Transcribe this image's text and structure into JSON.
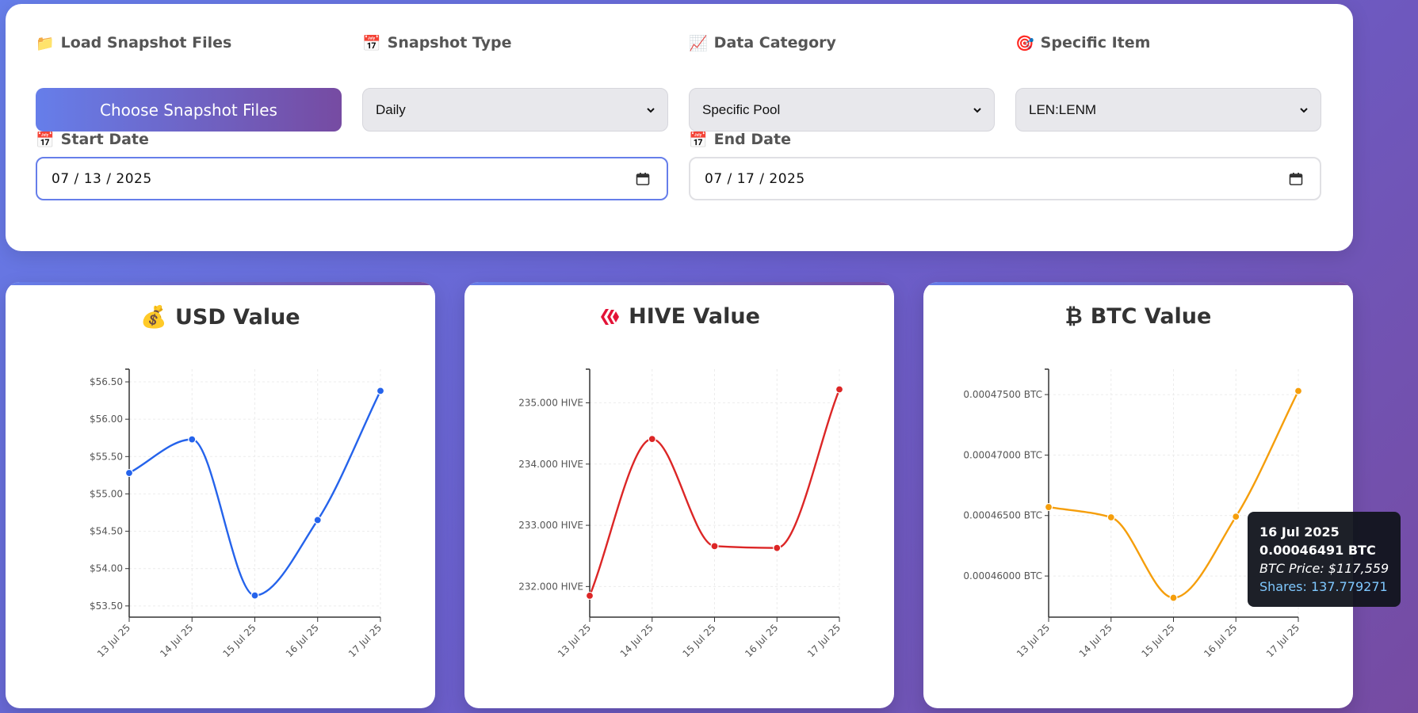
{
  "controls": {
    "load_files": {
      "icon": "📁",
      "label": "Load Snapshot Files",
      "button": "Choose Snapshot Files"
    },
    "snapshot_type": {
      "icon": "📅",
      "label": "Snapshot Type",
      "value": "Daily"
    },
    "data_category": {
      "icon": "📈",
      "label": "Data Category",
      "value": "Specific Pool"
    },
    "specific_item": {
      "icon": "🎯",
      "label": "Specific Item",
      "value": "LEN:LENM"
    },
    "start_date": {
      "icon": "📅",
      "label": "Start Date",
      "month": "07",
      "day": "13",
      "year": "2025"
    },
    "end_date": {
      "icon": "📅",
      "label": "End Date",
      "month": "07",
      "day": "17",
      "year": "2025"
    }
  },
  "colors": {
    "usd": "#2563eb",
    "hive": "#dc2626",
    "btc": "#f59e0b",
    "accent_start": "#667eea",
    "accent_end": "#764ba2"
  },
  "chart_data": [
    {
      "id": "usd",
      "type": "line",
      "icon": "💰",
      "title": "USD Value",
      "categories": [
        "13 Jul 25",
        "14 Jul 25",
        "15 Jul 25",
        "16 Jul 25",
        "17 Jul 25"
      ],
      "values": [
        55.28,
        55.73,
        53.64,
        54.65,
        56.38
      ],
      "yticks": [
        53.5,
        54.0,
        54.5,
        55.0,
        55.5,
        56.0,
        56.5
      ],
      "ytick_labels": [
        "$53.50",
        "$54.00",
        "$54.50",
        "$55.00",
        "$55.50",
        "$56.00",
        "$56.50"
      ],
      "ylim": [
        53.35,
        56.67
      ],
      "grid": true
    },
    {
      "id": "hive",
      "type": "line",
      "icon": "hive-logo",
      "title": "HIVE Value",
      "categories": [
        "13 Jul 25",
        "14 Jul 25",
        "15 Jul 25",
        "16 Jul 25",
        "17 Jul 25"
      ],
      "values": [
        231.85,
        234.41,
        232.66,
        232.63,
        235.22
      ],
      "yticks": [
        232,
        233,
        234,
        235
      ],
      "ytick_labels": [
        "232.000 HIVE",
        "233.000 HIVE",
        "234.000 HIVE",
        "235.000 HIVE"
      ],
      "ylim": [
        231.5,
        235.55
      ],
      "grid": true
    },
    {
      "id": "btc",
      "type": "line",
      "icon": "₿",
      "title": "BTC Value",
      "categories": [
        "13 Jul 25",
        "14 Jul 25",
        "15 Jul 25",
        "16 Jul 25",
        "17 Jul 25"
      ],
      "values": [
        0.0004657,
        0.00046485,
        0.0004582,
        0.00046491,
        0.0004753
      ],
      "yticks": [
        0.00046,
        0.000465,
        0.00047,
        0.000475
      ],
      "ytick_labels": [
        "0.00046000 BTC",
        "0.00046500 BTC",
        "0.00047000 BTC",
        "0.00047500 BTC"
      ],
      "ylim": [
        0.0004566,
        0.0004771
      ],
      "grid": true
    }
  ],
  "tooltip": {
    "date": "16 Jul 2025",
    "value": "0.00046491 BTC",
    "price": "BTC Price: $117,559",
    "shares": "Shares: 137.779271"
  }
}
